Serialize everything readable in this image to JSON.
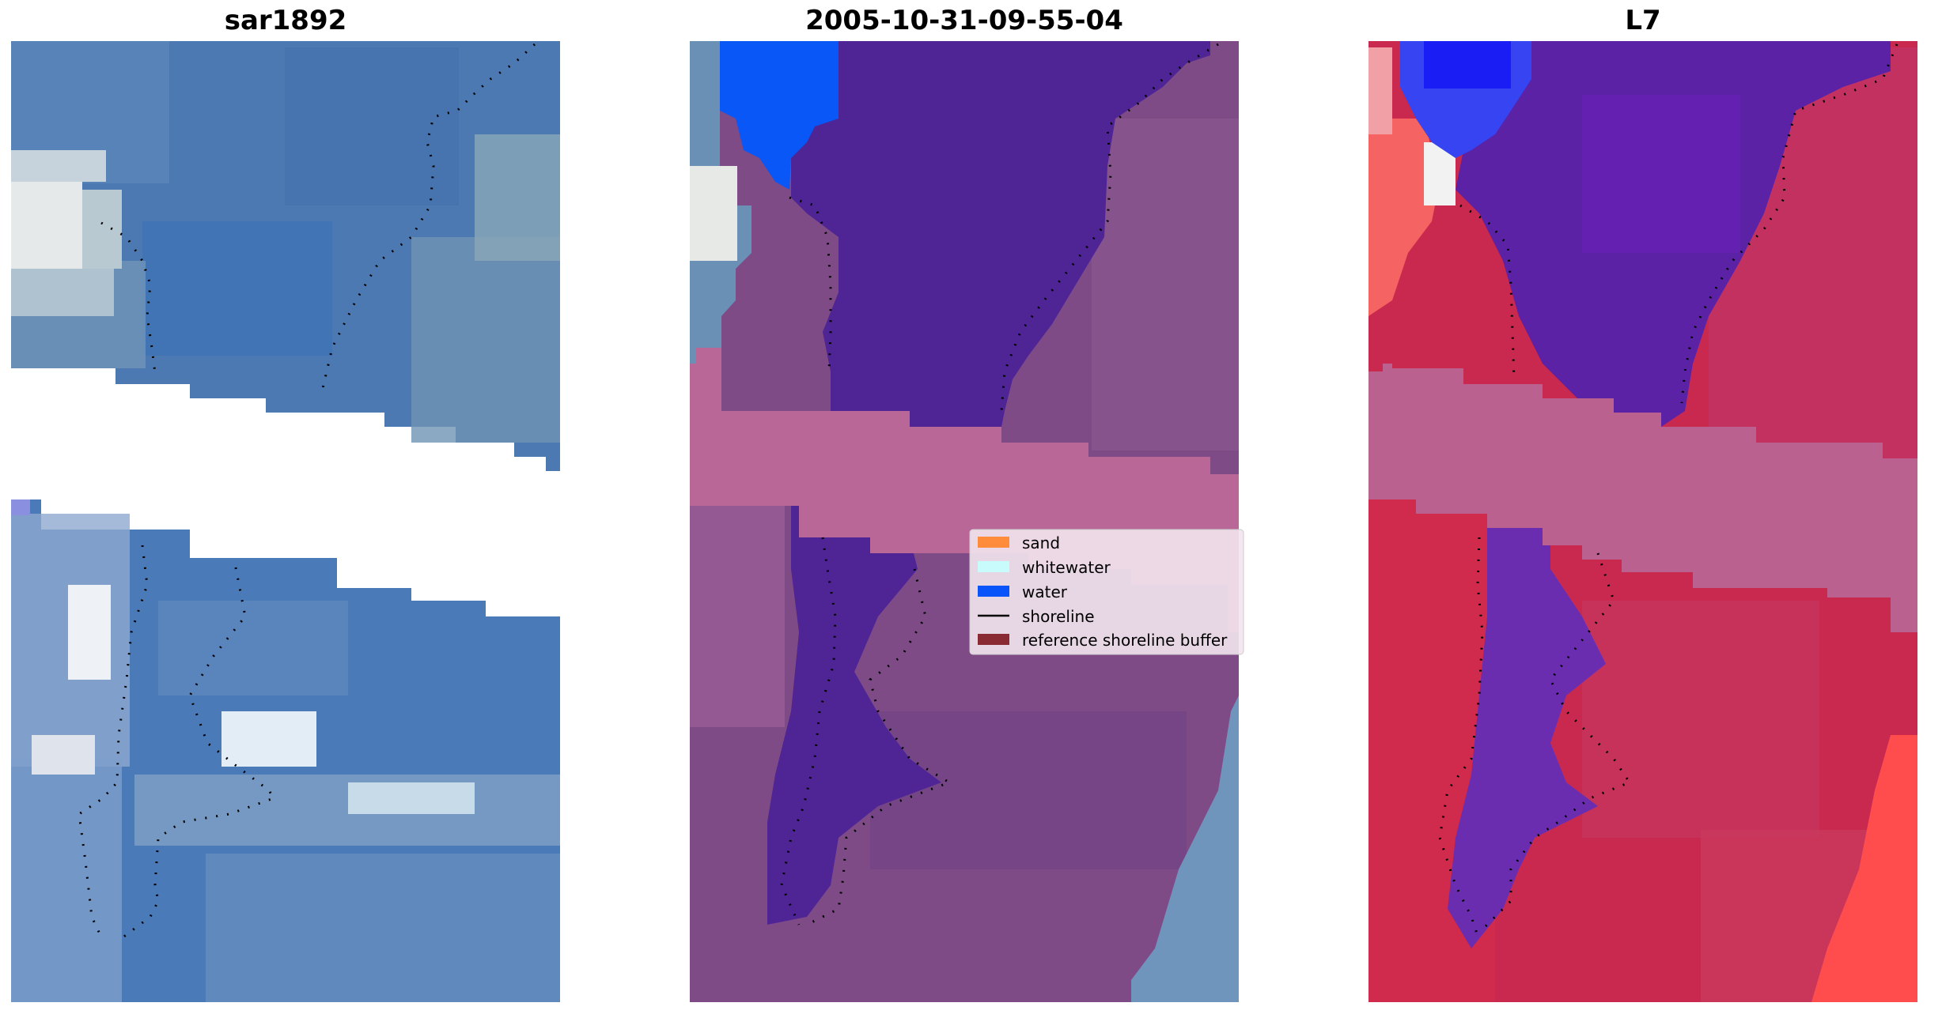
{
  "panels": [
    {
      "title": "sar1892"
    },
    {
      "title": "2005-10-31-09-55-04"
    },
    {
      "title": "L7"
    }
  ],
  "legend": {
    "items": [
      {
        "label": "sand",
        "color": "#ff8c3a",
        "kind": "patch"
      },
      {
        "label": "whitewater",
        "color": "#c8fcfc",
        "kind": "patch"
      },
      {
        "label": "water",
        "color": "#0a55fa",
        "kind": "patch"
      },
      {
        "label": "shoreline",
        "color": "#000000",
        "kind": "line"
      },
      {
        "label": "reference shoreline buffer",
        "color": "#8a2a32",
        "kind": "patch"
      }
    ]
  },
  "colors": {
    "water_rgb_base": "#4a7ab8",
    "classified_water_overlay": "#4a2494",
    "buffer_overlay": "#b96797",
    "land_overlay": "#7a4a86",
    "l7_land": "#c8284e",
    "l7_water": "#5a22a8",
    "l7_bright_water": "#2f3ff5"
  }
}
